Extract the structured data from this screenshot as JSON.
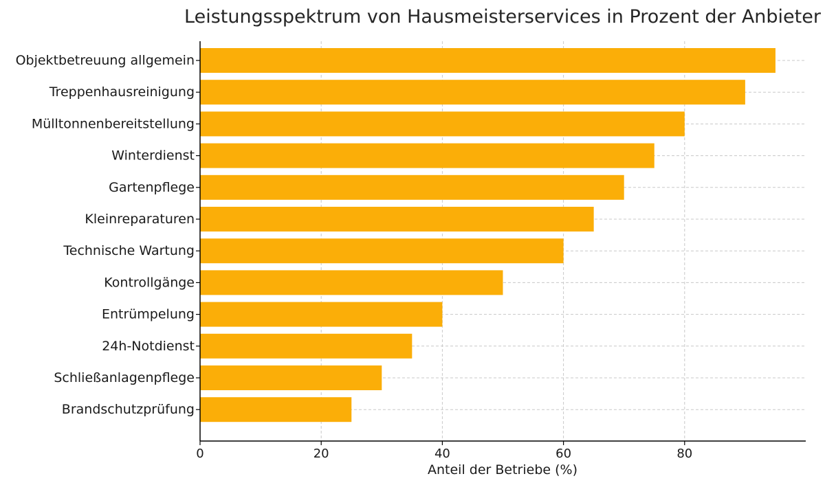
{
  "chart_data": {
    "type": "bar",
    "orientation": "horizontal",
    "title": "Leistungsspektrum von Hausmeisterservices in Prozent der Anbieter",
    "xlabel": "Anteil der Betriebe (%)",
    "ylabel": "",
    "xlim": [
      0,
      100
    ],
    "xticks": [
      0,
      20,
      40,
      60,
      80
    ],
    "grid": true,
    "bar_color": "#FBAE08",
    "categories": [
      "Objektbetreuung allgemein",
      "Treppenhausreinigung",
      "Mülltonnenbereitstellung",
      "Winterdienst",
      "Gartenpflege",
      "Kleinreparaturen",
      "Technische Wartung",
      "Kontrollgänge",
      "Entrümpelung",
      "24h-Notdienst",
      "Schließanlagenpflege",
      "Brandschutzprüfung"
    ],
    "values": [
      95,
      90,
      80,
      75,
      70,
      65,
      60,
      50,
      40,
      35,
      30,
      25
    ]
  }
}
